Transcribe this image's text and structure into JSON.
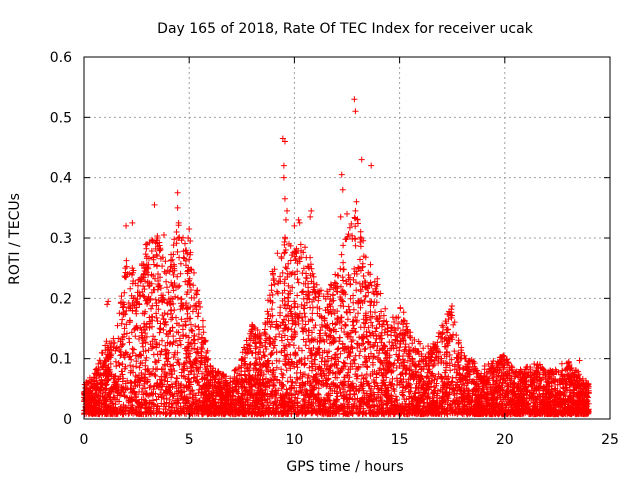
{
  "chart_data": {
    "type": "scatter",
    "title": "Day 165 of 2018, Rate Of TEC Index for receiver ucak",
    "xlabel": "GPS time / hours",
    "ylabel": "ROTI / TECUs",
    "xlim": [
      0,
      25
    ],
    "ylim": [
      0,
      0.6
    ],
    "xticks": [
      0,
      5,
      10,
      15,
      20,
      25
    ],
    "yticks": [
      0,
      0.1,
      0.2,
      0.3,
      0.4,
      0.5,
      0.6
    ],
    "xtick_labels": [
      "0",
      "5",
      "10",
      "15",
      "20",
      "25"
    ],
    "ytick_labels": [
      "0",
      "0.1",
      "0.2",
      "0.3",
      "0.4",
      "0.5",
      "0.6"
    ],
    "grid": true,
    "marker": "plus",
    "color": "#ff0000",
    "envelope": [
      {
        "x": 0.0,
        "ymax": 0.05
      },
      {
        "x": 0.5,
        "ymax": 0.07
      },
      {
        "x": 1.0,
        "ymax": 0.12
      },
      {
        "x": 1.5,
        "ymax": 0.13
      },
      {
        "x": 2.0,
        "ymax": 0.26
      },
      {
        "x": 2.5,
        "ymax": 0.24
      },
      {
        "x": 3.0,
        "ymax": 0.29
      },
      {
        "x": 3.5,
        "ymax": 0.3
      },
      {
        "x": 4.0,
        "ymax": 0.25
      },
      {
        "x": 4.5,
        "ymax": 0.32
      },
      {
        "x": 5.0,
        "ymax": 0.28
      },
      {
        "x": 5.5,
        "ymax": 0.19
      },
      {
        "x": 6.0,
        "ymax": 0.08
      },
      {
        "x": 6.5,
        "ymax": 0.07
      },
      {
        "x": 7.0,
        "ymax": 0.06
      },
      {
        "x": 7.5,
        "ymax": 0.1
      },
      {
        "x": 8.0,
        "ymax": 0.15
      },
      {
        "x": 8.5,
        "ymax": 0.13
      },
      {
        "x": 9.0,
        "ymax": 0.25
      },
      {
        "x": 9.5,
        "ymax": 0.3
      },
      {
        "x": 10.0,
        "ymax": 0.28
      },
      {
        "x": 10.5,
        "ymax": 0.3
      },
      {
        "x": 11.0,
        "ymax": 0.22
      },
      {
        "x": 11.5,
        "ymax": 0.2
      },
      {
        "x": 12.0,
        "ymax": 0.24
      },
      {
        "x": 12.5,
        "ymax": 0.32
      },
      {
        "x": 13.0,
        "ymax": 0.33
      },
      {
        "x": 13.5,
        "ymax": 0.26
      },
      {
        "x": 14.0,
        "ymax": 0.22
      },
      {
        "x": 14.5,
        "ymax": 0.15
      },
      {
        "x": 15.0,
        "ymax": 0.19
      },
      {
        "x": 15.5,
        "ymax": 0.14
      },
      {
        "x": 16.0,
        "ymax": 0.12
      },
      {
        "x": 16.5,
        "ymax": 0.11
      },
      {
        "x": 17.0,
        "ymax": 0.16
      },
      {
        "x": 17.5,
        "ymax": 0.18
      },
      {
        "x": 18.0,
        "ymax": 0.1
      },
      {
        "x": 18.5,
        "ymax": 0.09
      },
      {
        "x": 19.0,
        "ymax": 0.08
      },
      {
        "x": 19.5,
        "ymax": 0.09
      },
      {
        "x": 20.0,
        "ymax": 0.1
      },
      {
        "x": 20.5,
        "ymax": 0.07
      },
      {
        "x": 21.0,
        "ymax": 0.08
      },
      {
        "x": 21.5,
        "ymax": 0.09
      },
      {
        "x": 22.0,
        "ymax": 0.07
      },
      {
        "x": 22.5,
        "ymax": 0.08
      },
      {
        "x": 23.0,
        "ymax": 0.09
      },
      {
        "x": 23.5,
        "ymax": 0.07
      },
      {
        "x": 24.0,
        "ymax": 0.05
      }
    ],
    "outliers": [
      {
        "x": 0.05,
        "y": 0.045
      },
      {
        "x": 1.1,
        "y": 0.19
      },
      {
        "x": 1.15,
        "y": 0.195
      },
      {
        "x": 2.0,
        "y": 0.32
      },
      {
        "x": 2.3,
        "y": 0.325
      },
      {
        "x": 3.0,
        "y": 0.29
      },
      {
        "x": 3.35,
        "y": 0.355
      },
      {
        "x": 3.5,
        "y": 0.3
      },
      {
        "x": 3.8,
        "y": 0.305
      },
      {
        "x": 4.45,
        "y": 0.375
      },
      {
        "x": 4.45,
        "y": 0.35
      },
      {
        "x": 4.5,
        "y": 0.325
      },
      {
        "x": 4.4,
        "y": 0.31
      },
      {
        "x": 4.95,
        "y": 0.3
      },
      {
        "x": 5.0,
        "y": 0.315
      },
      {
        "x": 5.05,
        "y": 0.295
      },
      {
        "x": 9.45,
        "y": 0.465
      },
      {
        "x": 9.55,
        "y": 0.46
      },
      {
        "x": 9.5,
        "y": 0.42
      },
      {
        "x": 9.5,
        "y": 0.4
      },
      {
        "x": 9.55,
        "y": 0.365
      },
      {
        "x": 9.65,
        "y": 0.345
      },
      {
        "x": 9.6,
        "y": 0.33
      },
      {
        "x": 10.2,
        "y": 0.33
      },
      {
        "x": 10.25,
        "y": 0.325
      },
      {
        "x": 10.0,
        "y": 0.32
      },
      {
        "x": 10.8,
        "y": 0.345
      },
      {
        "x": 10.75,
        "y": 0.335
      },
      {
        "x": 12.25,
        "y": 0.405
      },
      {
        "x": 12.3,
        "y": 0.38
      },
      {
        "x": 12.2,
        "y": 0.335
      },
      {
        "x": 12.5,
        "y": 0.34
      },
      {
        "x": 12.85,
        "y": 0.53
      },
      {
        "x": 12.9,
        "y": 0.51
      },
      {
        "x": 12.95,
        "y": 0.36
      },
      {
        "x": 12.9,
        "y": 0.345
      },
      {
        "x": 13.2,
        "y": 0.43
      },
      {
        "x": 13.65,
        "y": 0.42
      },
      {
        "x": 13.3,
        "y": 0.27
      },
      {
        "x": 13.6,
        "y": 0.24
      },
      {
        "x": 23.55,
        "y": 0.097
      }
    ]
  }
}
